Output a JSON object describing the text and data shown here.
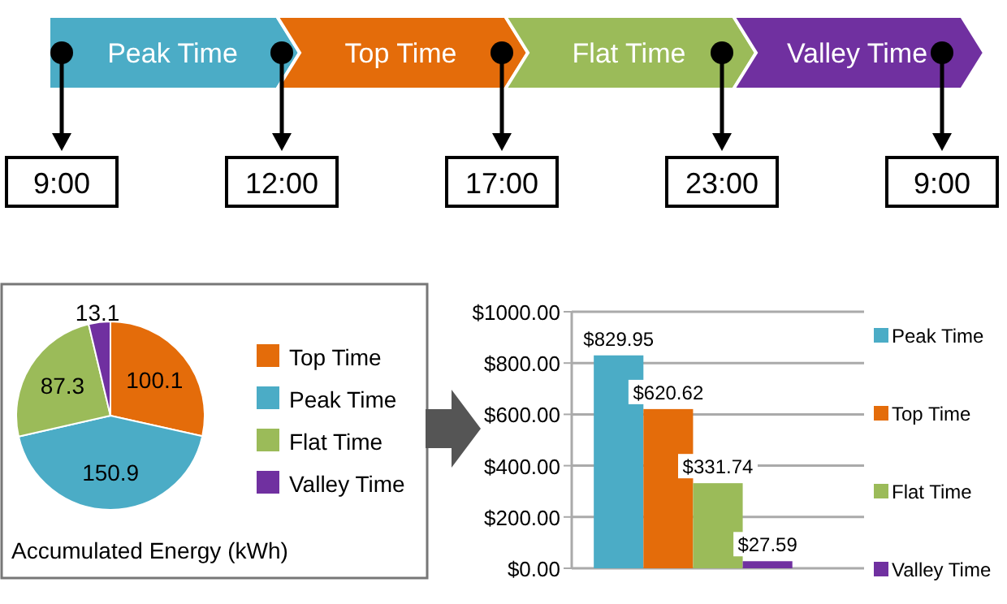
{
  "chart_data": [
    {
      "type": "other",
      "categories": [
        "Peak Time",
        "Top Time",
        "Flat Time",
        "Valley Time"
      ],
      "colors": [
        "#4bacc6",
        "#e46c0a",
        "#9bbb59",
        "#7030a0"
      ],
      "annotations": [
        "9:00",
        "12:00",
        "17:00",
        "23:00",
        "9:00"
      ]
    },
    {
      "type": "pie",
      "title": "Accumulated Energy (kWh)",
      "categories": [
        "Top Time",
        "Peak Time",
        "Flat Time",
        "Valley Time"
      ],
      "values": [
        100.1,
        150.9,
        87.3,
        13.1
      ],
      "colors": [
        "#e46c0a",
        "#4bacc6",
        "#9bbb59",
        "#7030a0"
      ],
      "data_labels": true,
      "legend": "right"
    },
    {
      "type": "bar",
      "categories": [
        null
      ],
      "series": [
        {
          "name": "Peak Time",
          "color": "#4bacc6",
          "values": [
            829.95
          ],
          "value_labels": [
            "$829.95"
          ]
        },
        {
          "name": "Top Time",
          "color": "#e46c0a",
          "values": [
            620.62
          ],
          "value_labels": [
            "$620.62"
          ]
        },
        {
          "name": "Flat Time",
          "color": "#9bbb59",
          "values": [
            331.74
          ],
          "value_labels": [
            "$331.74"
          ]
        },
        {
          "name": "Valley Time",
          "color": "#7030a0",
          "values": [
            27.59
          ],
          "value_labels": [
            "$27.59"
          ]
        }
      ],
      "ylim": [
        0,
        1000
      ],
      "yticks": [
        {
          "value": 0,
          "label": "$0.00"
        },
        {
          "value": 200,
          "label": "$200.00"
        },
        {
          "value": 400,
          "label": "$400.00"
        },
        {
          "value": 600,
          "label": "$600.00"
        },
        {
          "value": 800,
          "label": "$800.00"
        },
        {
          "value": 1000,
          "label": "$1000.00"
        }
      ],
      "grid": "y",
      "legend": "right"
    }
  ]
}
